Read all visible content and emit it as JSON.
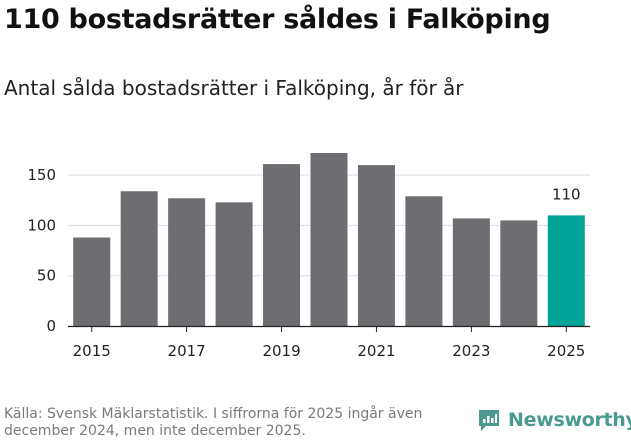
{
  "title": "110 bostadsrätter såldes i Falköping",
  "subtitle": "Antal sålda bostadsrätter i Falköping, år för år",
  "source": "Källa: Svensk Mäklarstatistik. I siffrorna för 2025 ingår även december 2024, men inte december 2025.",
  "brand": {
    "name": "Newsworthy",
    "icon": "newsworthy-logo-icon",
    "color": "#4a9a8e"
  },
  "chart_data": {
    "type": "bar",
    "categories": [
      "2015",
      "2016",
      "2017",
      "2018",
      "2019",
      "2020",
      "2021",
      "2022",
      "2023",
      "2024",
      "2025"
    ],
    "values": [
      88,
      134,
      127,
      123,
      161,
      172,
      160,
      129,
      107,
      105,
      110
    ],
    "highlight_index": 10,
    "highlight_label": "110",
    "x_tick_labels": [
      "2015",
      "2017",
      "2019",
      "2021",
      "2023",
      "2025"
    ],
    "y_ticks": [
      0,
      50,
      100,
      150
    ],
    "ylim": [
      0,
      175
    ],
    "grid": true,
    "colors": {
      "bar": "#6e6d72",
      "highlight": "#00a396",
      "grid": "#dddddd",
      "axis": "#222222"
    }
  }
}
